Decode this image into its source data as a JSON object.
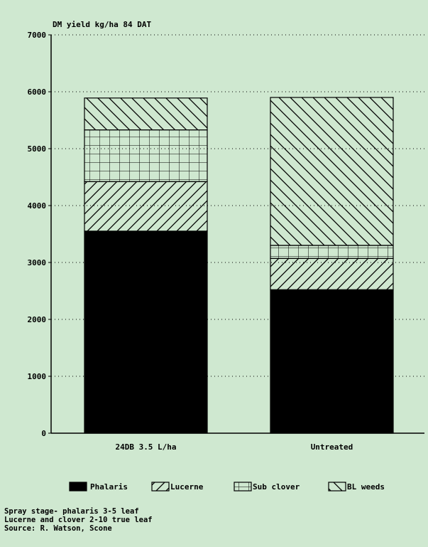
{
  "chart_data": {
    "type": "bar",
    "stacked": true,
    "title": "DM yield kg/ha  84 DAT",
    "xlabel": "",
    "ylabel": "",
    "categories": [
      "24DB  3.5 L/ha",
      "Untreated"
    ],
    "ylim": [
      0,
      7000
    ],
    "yticks": [
      0,
      1000,
      2000,
      3000,
      4000,
      5000,
      6000,
      7000
    ],
    "grid": "dotted horizontal",
    "legend_position": "bottom",
    "series": [
      {
        "name": "Phalaris",
        "values": [
          3550,
          2520
        ],
        "pattern": "solid"
      },
      {
        "name": "Lucerne",
        "values": [
          870,
          550
        ],
        "pattern": "forward-diagonal"
      },
      {
        "name": "Sub clover",
        "values": [
          910,
          230
        ],
        "pattern": "grid"
      },
      {
        "name": "BL weeds",
        "values": [
          560,
          2600
        ],
        "pattern": "back-diagonal"
      }
    ]
  },
  "notes": [
    "Spray stage- phalaris 3-5 leaf",
    "Lucerne and clover 2-10 true leaf",
    "Source: R. Watson, Scone"
  ],
  "colors": {
    "background": "#cfe8d0",
    "ink": "#000000"
  }
}
